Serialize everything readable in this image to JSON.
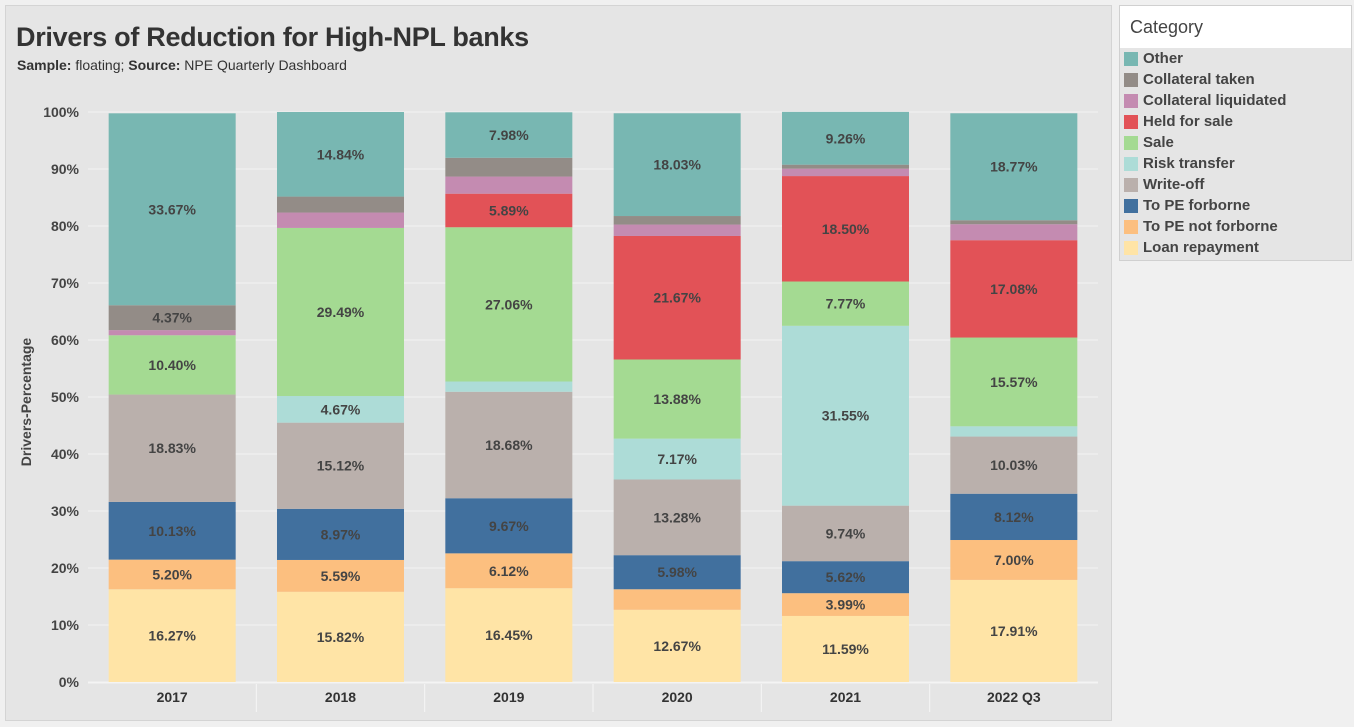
{
  "header": {
    "title": "Drivers of Reduction for High-NPL banks",
    "sample_label": "Sample:",
    "sample_value": " floating; ",
    "source_label": "Source:",
    "source_value": " NPE Quarterly Dashboard"
  },
  "legend": {
    "title": "Category"
  },
  "chart_data": {
    "type": "bar",
    "stacked": true,
    "title": "Drivers of Reduction for High-NPL banks",
    "subtitle": "Sample: floating; Source: NPE Quarterly Dashboard",
    "xlabel": "",
    "ylabel": "Drivers-Percentage",
    "ylim": [
      0,
      100
    ],
    "yticks": [
      "0%",
      "10%",
      "20%",
      "30%",
      "40%",
      "50%",
      "60%",
      "70%",
      "80%",
      "90%",
      "100%"
    ],
    "grid": true,
    "legend_position": "right",
    "categories": [
      "2017",
      "2018",
      "2019",
      "2020",
      "2021",
      "2022 Q3"
    ],
    "series": [
      {
        "name": "Loan repayment",
        "color": "#FFE4A6",
        "values": [
          16.27,
          15.82,
          16.45,
          12.67,
          11.59,
          17.91
        ],
        "labels": [
          "16.27%",
          "15.82%",
          "16.45%",
          "12.67%",
          "11.59%",
          "17.91%"
        ]
      },
      {
        "name": "To PE not forborne",
        "color": "#FCBF7F",
        "values": [
          5.2,
          5.59,
          6.12,
          3.6,
          3.99,
          7.0
        ],
        "labels": [
          "5.20%",
          "5.59%",
          "6.12%",
          "",
          "3.99%",
          "7.00%"
        ]
      },
      {
        "name": "To PE forborne",
        "color": "#41709E",
        "values": [
          10.13,
          8.97,
          9.67,
          5.98,
          5.62,
          8.12
        ],
        "labels": [
          "10.13%",
          "8.97%",
          "9.67%",
          "5.98%",
          "5.62%",
          "8.12%"
        ]
      },
      {
        "name": "Write-off",
        "color": "#BAB0AC",
        "values": [
          18.83,
          15.12,
          18.68,
          13.28,
          9.74,
          10.03
        ],
        "labels": [
          "18.83%",
          "15.12%",
          "18.68%",
          "13.28%",
          "9.74%",
          "10.03%"
        ]
      },
      {
        "name": "Risk transfer",
        "color": "#ADDCD7",
        "values": [
          0,
          4.67,
          1.8,
          7.17,
          31.55,
          1.8
        ],
        "labels": [
          "",
          "4.67%",
          "",
          "7.17%",
          "31.55%",
          ""
        ]
      },
      {
        "name": "Sale",
        "color": "#A4DA92",
        "values": [
          10.4,
          29.49,
          27.06,
          13.88,
          7.77,
          15.57
        ],
        "labels": [
          "10.40%",
          "29.49%",
          "27.06%",
          "13.88%",
          "7.77%",
          "15.57%"
        ]
      },
      {
        "name": "Held for sale",
        "color": "#E25257",
        "values": [
          0,
          0,
          5.89,
          21.67,
          18.5,
          17.08
        ],
        "labels": [
          "",
          "",
          "5.89%",
          "21.67%",
          "18.50%",
          "17.08%"
        ]
      },
      {
        "name": "Collateral liquidated",
        "color": "#C48BB1",
        "values": [
          0.9,
          2.7,
          3.0,
          2.0,
          1.3,
          2.8
        ],
        "labels": [
          "",
          "",
          "",
          "",
          "",
          ""
        ]
      },
      {
        "name": "Collateral taken",
        "color": "#938C87",
        "values": [
          4.37,
          2.8,
          3.3,
          1.5,
          0.7,
          0.7
        ],
        "labels": [
          "4.37%",
          "",
          "",
          "",
          "",
          ""
        ]
      },
      {
        "name": "Other",
        "color": "#78B7B2",
        "values": [
          33.67,
          14.84,
          7.98,
          18.03,
          9.26,
          18.77
        ],
        "labels": [
          "33.67%",
          "14.84%",
          "7.98%",
          "18.03%",
          "9.26%",
          "18.77%"
        ]
      }
    ]
  }
}
